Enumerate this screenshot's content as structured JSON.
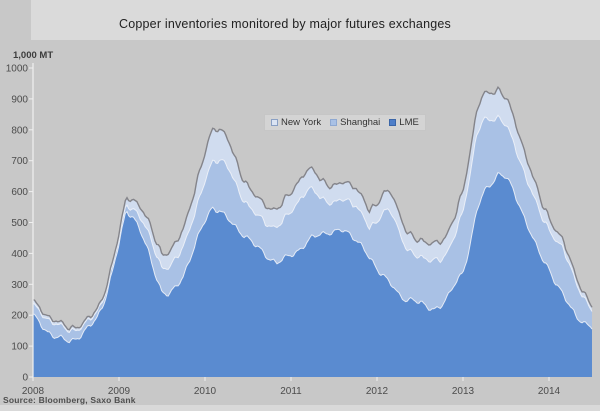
{
  "title": {
    "text": "Copper inventories monitored by major futures exchanges"
  },
  "unit_label": "1,000 MT",
  "source": "Source: Bloomberg, Saxo Bank",
  "legend": {
    "items": [
      {
        "label": "New York",
        "fill": "#dbe4f3",
        "border": "#8aa0c4"
      },
      {
        "label": "Shanghai",
        "fill": "#a9c1e5",
        "border": "#8fa9d2"
      },
      {
        "label": "LME",
        "fill": "#4f7fc9",
        "border": "#3b66a8"
      }
    ]
  },
  "colors": {
    "background": "#c8c8c8",
    "title_strip": "#dadada",
    "legend_background": "#d4d4d4",
    "outline": "#84848a",
    "band_divider": "#eef2f8",
    "axis": "#f0f0f0",
    "tick_text": "#4c4c4c"
  },
  "chart_data": {
    "type": "area",
    "stacked": true,
    "title": "Copper inventories monitored by major futures exchanges",
    "xlabel": "",
    "ylabel": "1,000 MT",
    "ylim": [
      0,
      1000
    ],
    "y_ticks": [
      0,
      100,
      200,
      300,
      400,
      500,
      600,
      700,
      800,
      900,
      1000
    ],
    "x_tick_labels": [
      "2008",
      "2009",
      "2010",
      "2011",
      "2012",
      "2013",
      "2014"
    ],
    "x_start": "2008-01",
    "x_end": "2014-07",
    "x_interval": "monthly",
    "grid": false,
    "legend_position": "top-center-inside",
    "outline_color": "#84848a",
    "axis_color": "#f0f0f0",
    "tick_label_color": "#4c4c4c",
    "series": [
      {
        "name": "LME",
        "color": "#5a8bd0",
        "values": [
          198,
          175,
          148,
          130,
          122,
          118,
          125,
          140,
          165,
          195,
          250,
          330,
          430,
          540,
          520,
          470,
          410,
          340,
          275,
          265,
          290,
          330,
          390,
          450,
          505,
          550,
          540,
          515,
          490,
          470,
          450,
          425,
          405,
          385,
          370,
          380,
          395,
          410,
          430,
          450,
          462,
          470,
          468,
          474,
          466,
          450,
          420,
          380,
          350,
          330,
          300,
          262,
          250,
          255,
          240,
          222,
          220,
          235,
          262,
          305,
          340,
          430,
          545,
          600,
          630,
          660,
          645,
          605,
          550,
          492,
          432,
          385,
          352,
          302,
          262,
          225,
          195,
          172,
          158
        ]
      },
      {
        "name": "Shanghai",
        "color": "#a9c1e5",
        "values": [
          33,
          36,
          40,
          44,
          40,
          34,
          28,
          24,
          21,
          19,
          17,
          16,
          17,
          20,
          28,
          42,
          58,
          72,
          80,
          88,
          92,
          95,
          100,
          108,
          130,
          150,
          163,
          168,
          150,
          122,
          105,
          100,
          103,
          108,
          116,
          126,
          138,
          158,
          170,
          158,
          120,
          100,
          92,
          100,
          106,
          110,
          100,
          96,
          155,
          215,
          235,
          205,
          170,
          150,
          148,
          152,
          160,
          148,
          145,
          162,
          200,
          226,
          246,
          234,
          208,
          180,
          166,
          156,
          150,
          145,
          140,
          130,
          128,
          142,
          150,
          128,
          100,
          76,
          58
        ]
      },
      {
        "name": "New York",
        "color": "#d0dcef",
        "values": [
          12,
          11,
          10,
          10,
          9,
          9,
          9,
          8,
          8,
          9,
          10,
          11,
          14,
          24,
          30,
          34,
          38,
          42,
          44,
          48,
          52,
          58,
          68,
          80,
          92,
          105,
          100,
          92,
          82,
          70,
          62,
          58,
          56,
          57,
          58,
          60,
          62,
          64,
          66,
          64,
          60,
          56,
          54,
          55,
          57,
          58,
          57,
          56,
          57,
          60,
          62,
          60,
          57,
          54,
          53,
          54,
          56,
          58,
          60,
          62,
          66,
          72,
          78,
          84,
          88,
          90,
          88,
          84,
          76,
          66,
          56,
          46,
          38,
          32,
          27,
          22,
          18,
          16,
          14
        ]
      }
    ]
  }
}
